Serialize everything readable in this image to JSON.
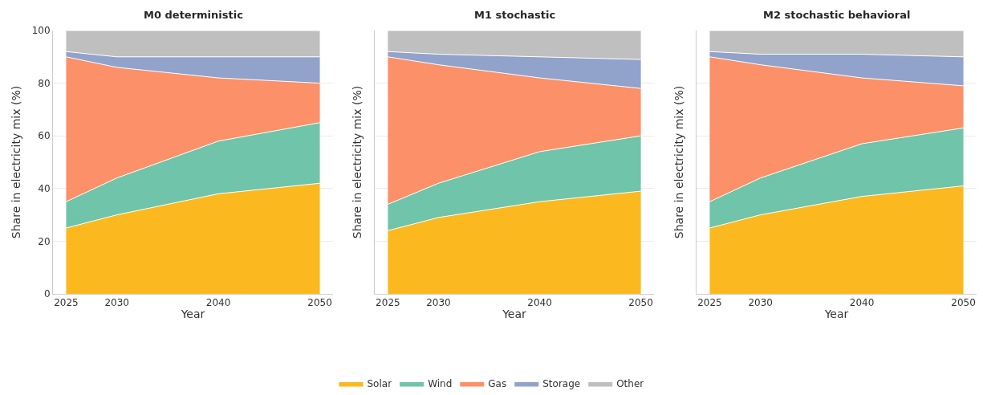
{
  "chart_data": [
    {
      "type": "area",
      "title": "M0 deterministic",
      "xlabel": "Year",
      "ylabel": "Share in electricity mix (%)",
      "stacked": true,
      "legend": "bottom",
      "x": [
        2025,
        2030,
        2040,
        2050
      ],
      "xlim": [
        2023.7,
        2051.3
      ],
      "xticks": [
        2025,
        2030,
        2040,
        2050
      ],
      "ylim": [
        0,
        100
      ],
      "yticks": [
        0,
        20,
        40,
        60,
        80,
        100
      ],
      "grid": "y",
      "series": [
        {
          "name": "Solar",
          "color": "#fbb91f",
          "values": [
            25,
            30,
            38,
            42
          ]
        },
        {
          "name": "Wind",
          "color": "#6fc4a9",
          "values": [
            10,
            14,
            20,
            23
          ]
        },
        {
          "name": "Gas",
          "color": "#fc9068",
          "values": [
            55,
            42,
            24,
            15
          ]
        },
        {
          "name": "Storage",
          "color": "#91a3cb",
          "values": [
            2,
            4,
            8,
            10
          ]
        },
        {
          "name": "Other",
          "color": "#bfbfbf",
          "values": [
            8,
            10,
            10,
            10
          ]
        }
      ]
    },
    {
      "type": "area",
      "title": "M1 stochastic",
      "xlabel": "Year",
      "ylabel": "Share in electricity mix (%)",
      "stacked": true,
      "x": [
        2025,
        2030,
        2040,
        2050
      ],
      "xlim": [
        2023.7,
        2051.3
      ],
      "xticks": [
        2025,
        2030,
        2040,
        2050
      ],
      "ylim": [
        0,
        100
      ],
      "yticks": [
        0,
        20,
        40,
        60,
        80,
        100
      ],
      "grid": "y",
      "tick_labels": "x",
      "series": [
        {
          "color": "#fbb91f",
          "values": [
            24,
            29,
            35,
            39
          ]
        },
        {
          "color": "#6fc4a9",
          "values": [
            10,
            13,
            19,
            21
          ]
        },
        {
          "color": "#fc9068",
          "values": [
            56,
            45,
            28,
            18
          ]
        },
        {
          "color": "#91a3cb",
          "values": [
            2,
            4,
            8,
            11
          ]
        },
        {
          "color": "#bfbfbf",
          "values": [
            8,
            9,
            10,
            11
          ]
        }
      ]
    },
    {
      "type": "area",
      "title": "M2 stochastic behavioral",
      "xlabel": "Year",
      "ylabel": "Share in electricity mix (%)",
      "stacked": true,
      "x": [
        2025,
        2030,
        2040,
        2050
      ],
      "xlim": [
        2023.7,
        2051.3
      ],
      "xticks": [
        2025,
        2030,
        2040,
        2050
      ],
      "ylim": [
        0,
        100
      ],
      "yticks": [
        0,
        20,
        40,
        60,
        80,
        100
      ],
      "grid": "y",
      "tick_labels": "x",
      "series": [
        {
          "color": "#fbb91f",
          "values": [
            25,
            30,
            37,
            41
          ]
        },
        {
          "color": "#6fc4a9",
          "values": [
            10,
            14,
            20,
            22
          ]
        },
        {
          "color": "#fc9068",
          "values": [
            55,
            43,
            25,
            16
          ]
        },
        {
          "color": "#91a3cb",
          "values": [
            2,
            4,
            9,
            11
          ]
        },
        {
          "color": "#bfbfbf",
          "values": [
            8,
            9,
            9,
            10
          ]
        }
      ]
    }
  ]
}
